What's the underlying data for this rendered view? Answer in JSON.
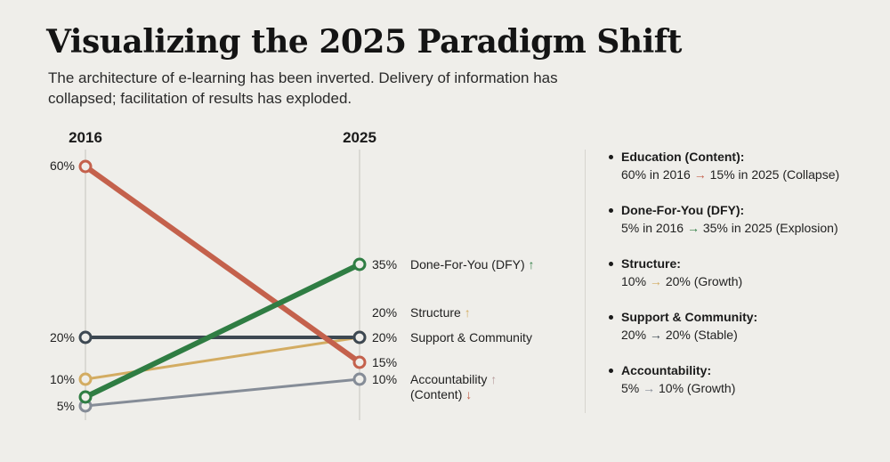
{
  "header": {
    "title": "Visualizing the 2025 Paradigm Shift",
    "subtitle": "The architecture of e-learning has been inverted. Delivery of information has collapsed; facilitation of results has exploded."
  },
  "chart_data": {
    "type": "line",
    "subtype": "slope",
    "title": "Visualizing the 2025 Paradigm Shift",
    "x": [
      "2016",
      "2025"
    ],
    "xlabel": "",
    "ylabel": "",
    "ylim": [
      5,
      60
    ],
    "grid": false,
    "legend": "right",
    "left_tick_labels": [
      "60%",
      "20%",
      "10%",
      "5%"
    ],
    "series": [
      {
        "name": "Education (Content)",
        "values": [
          60,
          15
        ],
        "color": "#c4614c",
        "end_label": "15%",
        "trend": "down",
        "weight": "bold"
      },
      {
        "name": "Done-For-You (DFY)",
        "values": [
          5,
          35
        ],
        "color": "#2f7d43",
        "end_label": "35%",
        "trend": "up",
        "weight": "bold"
      },
      {
        "name": "Structure",
        "values": [
          10,
          20
        ],
        "color": "#d3ac62",
        "end_label": "20%",
        "trend": "up",
        "weight": "normal"
      },
      {
        "name": "Support & Community",
        "values": [
          20,
          20
        ],
        "color": "#3d4852",
        "end_label": "20%",
        "trend": "flat",
        "weight": "medium"
      },
      {
        "name": "Accountability",
        "values": [
          5,
          10
        ],
        "color": "#858c97",
        "end_label": "10%",
        "trend": "up",
        "weight": "normal"
      }
    ],
    "right_labels": [
      {
        "value": "35%",
        "text": "Done-For-You (DFY)",
        "arrow": "↑",
        "arrow_color": "#2f7d43"
      },
      {
        "value": "20%",
        "text": "Structure",
        "arrow": "↑",
        "arrow_color": "#d3ac62"
      },
      {
        "value": "20%",
        "text": "Support & Community",
        "arrow": "",
        "arrow_color": ""
      },
      {
        "value": "15%",
        "text": "",
        "arrow": "",
        "arrow_color": ""
      },
      {
        "value": "10%",
        "text": "Accountability",
        "arrow": "↑",
        "arrow_color": "#b79b9b",
        "line2": "(Content)",
        "arrow2": "↓",
        "arrow2_color": "#c4614c"
      }
    ]
  },
  "legend": {
    "items": [
      {
        "title": "Education (Content):",
        "from": "60% in 2016",
        "arrow": "→",
        "arrow_color": "#c4614c",
        "to": "15% in 2025 (Collapse)"
      },
      {
        "title": "Done-For-You (DFY):",
        "from": "5% in 2016",
        "arrow": "→",
        "arrow_color": "#2f7d43",
        "to": "35% in 2025 (Explosion)"
      },
      {
        "title": "Structure:",
        "from": "10%",
        "arrow": "→",
        "arrow_color": "#d3ac62",
        "to": "20% (Growth)"
      },
      {
        "title": "Support & Community:",
        "from": "20%",
        "arrow": "→",
        "arrow_color": "#3d4852",
        "to": "20% (Stable)"
      },
      {
        "title": "Accountability:",
        "from": "5%",
        "arrow": "→",
        "arrow_color": "#858c97",
        "to": "10% (Growth)"
      }
    ]
  }
}
